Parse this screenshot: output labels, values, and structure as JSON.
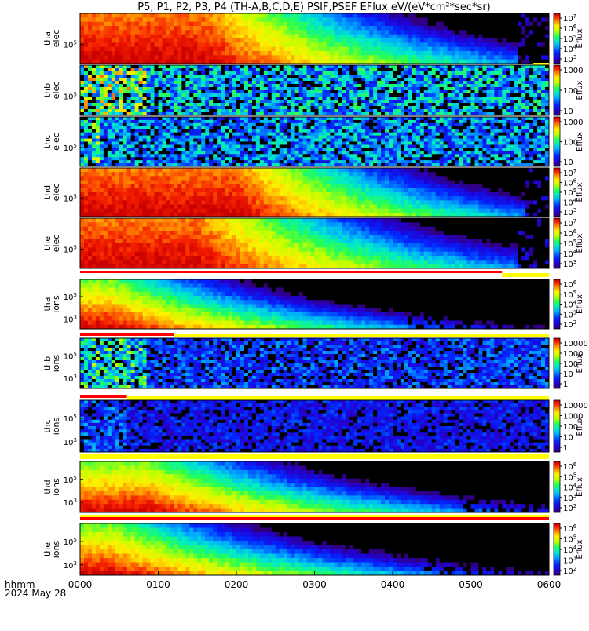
{
  "chart_data": {
    "type": "heatmap",
    "title": "P5, P1, P2, P3, P4 (TH-A,B,C,D,E) PSIF,PSEF EFlux eV/(eV*cm²*sec*sr)",
    "x_label_line1": "hhmm",
    "x_label_line2": "2024 May 28",
    "x_ticks": [
      "0000",
      "0100",
      "0200",
      "0300",
      "0400",
      "0500",
      "0600"
    ],
    "colorbar_label": "Eflux",
    "colorbar_title": "EFlux",
    "colors": {
      "background_black": "#000000",
      "flag_red": "#ff0000",
      "flag_yellow": "#ffff00"
    },
    "panels": [
      {
        "id": "tha-elec",
        "ylabel": [
          "tha",
          "elec"
        ],
        "ytick_labels": [
          {
            "base": "10",
            "exp": "5"
          }
        ],
        "colorbar_ticks": [
          {
            "base": "10",
            "exp": "3"
          },
          {
            "base": "10",
            "exp": "4"
          },
          {
            "base": "10",
            "exp": "5"
          },
          {
            "base": "10",
            "exp": "6"
          },
          {
            "base": "10",
            "exp": "7"
          }
        ],
        "cbar_range": [
          3,
          7
        ],
        "spectrum_profile": "strong",
        "intensity_decades": 7.0,
        "falloff_start_hours": 1.6,
        "falloff_end_hours": 5.6,
        "cutoff_hours": 5.6,
        "flag_bars": [
          {
            "color": "yellow",
            "start_hours": 5.8,
            "end_hours": 6.0
          }
        ]
      },
      {
        "id": "thb-elec",
        "ylabel": [
          "thb",
          "elec"
        ],
        "ytick_labels": [
          {
            "base": "10",
            "exp": "5"
          }
        ],
        "colorbar_ticks": [
          {
            "base": "",
            "exp": "",
            "text": "10"
          },
          {
            "base": "",
            "exp": "",
            "text": "100"
          },
          {
            "base": "",
            "exp": "",
            "text": "1000"
          }
        ],
        "cbar_range": [
          0,
          4
        ],
        "spectrum_profile": "noise",
        "noise_level_decades": 1.8,
        "burst_end_hours": 0.85,
        "burst_level_decades": 2.8,
        "flag_bars": []
      },
      {
        "id": "thc-elec",
        "ylabel": [
          "thc",
          "elec"
        ],
        "ytick_labels": [
          {
            "base": "10",
            "exp": "5"
          }
        ],
        "colorbar_ticks": [
          {
            "base": "",
            "exp": "",
            "text": "10"
          },
          {
            "base": "",
            "exp": "",
            "text": "100"
          },
          {
            "base": "",
            "exp": "",
            "text": "1000"
          }
        ],
        "cbar_range": [
          0,
          4
        ],
        "spectrum_profile": "noise",
        "noise_level_decades": 1.6,
        "burst_end_hours": 0.25,
        "burst_level_decades": 2.4,
        "flag_bars": []
      },
      {
        "id": "thd-elec",
        "ylabel": [
          "thd",
          "elec"
        ],
        "ytick_labels": [
          {
            "base": "10",
            "exp": "5"
          }
        ],
        "colorbar_ticks": [
          {
            "base": "10",
            "exp": "3"
          },
          {
            "base": "10",
            "exp": "4"
          },
          {
            "base": "10",
            "exp": "5"
          },
          {
            "base": "10",
            "exp": "6"
          },
          {
            "base": "10",
            "exp": "7"
          }
        ],
        "cbar_range": [
          3,
          7
        ],
        "spectrum_profile": "strong",
        "intensity_decades": 7.0,
        "falloff_start_hours": 2.0,
        "falloff_end_hours": 5.7,
        "cutoff_hours": 5.7,
        "flag_bars": []
      },
      {
        "id": "the-elec",
        "ylabel": [
          "the",
          "elec"
        ],
        "ytick_labels": [
          {
            "base": "10",
            "exp": "5"
          }
        ],
        "colorbar_ticks": [
          {
            "base": "10",
            "exp": "3"
          },
          {
            "base": "10",
            "exp": "4"
          },
          {
            "base": "10",
            "exp": "5"
          },
          {
            "base": "10",
            "exp": "6"
          },
          {
            "base": "10",
            "exp": "7"
          }
        ],
        "cbar_range": [
          3,
          7
        ],
        "spectrum_profile": "strong",
        "intensity_decades": 7.0,
        "falloff_start_hours": 1.5,
        "falloff_end_hours": 5.6,
        "cutoff_hours": 5.6,
        "flag_bars": [
          {
            "color": "red",
            "start_hours": 0.0,
            "end_hours": 5.4
          },
          {
            "color": "yellow",
            "start_hours": 5.4,
            "end_hours": 6.0
          }
        ]
      },
      {
        "id": "tha-ions",
        "ylabel": [
          "tha",
          "ions"
        ],
        "ytick_labels": [
          {
            "base": "10",
            "exp": "5"
          },
          {
            "base": "10",
            "exp": "3"
          }
        ],
        "colorbar_ticks": [
          {
            "base": "10",
            "exp": "2"
          },
          {
            "base": "10",
            "exp": "3"
          },
          {
            "base": "10",
            "exp": "4"
          },
          {
            "base": "10",
            "exp": "5"
          },
          {
            "base": "10",
            "exp": "6"
          }
        ],
        "cbar_range": [
          2,
          6.3
        ],
        "spectrum_profile": "ions",
        "intensity_decades": 6.3,
        "falloff_start_hours": 0.4,
        "falloff_end_hours": 4.2,
        "cutoff_hours": 6.0,
        "flag_bars": [
          {
            "color": "red",
            "start_hours": 0.0,
            "end_hours": 1.2
          },
          {
            "color": "yellow",
            "start_hours": 1.2,
            "end_hours": 6.0
          }
        ]
      },
      {
        "id": "thb-ions",
        "ylabel": [
          "thb",
          "ions"
        ],
        "ytick_labels": [
          {
            "base": "10",
            "exp": "5"
          },
          {
            "base": "10",
            "exp": "3"
          }
        ],
        "colorbar_ticks": [
          {
            "base": "",
            "exp": "",
            "text": "1"
          },
          {
            "base": "",
            "exp": "",
            "text": "10"
          },
          {
            "base": "",
            "exp": "",
            "text": "100"
          },
          {
            "base": "",
            "exp": "",
            "text": "1000"
          },
          {
            "base": "",
            "exp": "",
            "text": "10000"
          }
        ],
        "cbar_range": [
          0,
          4.3
        ],
        "spectrum_profile": "noise",
        "noise_level_decades": 1.2,
        "burst_end_hours": 0.85,
        "burst_level_decades": 2.3,
        "flag_bars": [
          {
            "color": "red",
            "start_hours": 0.0,
            "end_hours": 0.6
          },
          {
            "color": "yellow",
            "start_hours": 0.6,
            "end_hours": 6.0
          }
        ]
      },
      {
        "id": "thc-ions",
        "ylabel": [
          "thc",
          "ions"
        ],
        "ytick_labels": [
          {
            "base": "10",
            "exp": "5"
          },
          {
            "base": "10",
            "exp": "3"
          }
        ],
        "colorbar_ticks": [
          {
            "base": "",
            "exp": "",
            "text": "1"
          },
          {
            "base": "",
            "exp": "",
            "text": "10"
          },
          {
            "base": "",
            "exp": "",
            "text": "100"
          },
          {
            "base": "",
            "exp": "",
            "text": "1000"
          },
          {
            "base": "",
            "exp": "",
            "text": "10000"
          }
        ],
        "cbar_range": [
          0,
          4.3
        ],
        "spectrum_profile": "noise",
        "noise_level_decades": 0.9,
        "burst_end_hours": 0.6,
        "burst_level_decades": 1.3,
        "flag_bars": [
          {
            "color": "yellow",
            "start_hours": 0.0,
            "end_hours": 6.0
          }
        ]
      },
      {
        "id": "thd-ions",
        "ylabel": [
          "thd",
          "ions"
        ],
        "ytick_labels": [
          {
            "base": "10",
            "exp": "5"
          },
          {
            "base": "10",
            "exp": "3"
          }
        ],
        "colorbar_ticks": [
          {
            "base": "10",
            "exp": "2"
          },
          {
            "base": "10",
            "exp": "3"
          },
          {
            "base": "10",
            "exp": "4"
          },
          {
            "base": "10",
            "exp": "5"
          },
          {
            "base": "10",
            "exp": "6"
          }
        ],
        "cbar_range": [
          2,
          6.3
        ],
        "spectrum_profile": "ions",
        "intensity_decades": 6.3,
        "falloff_start_hours": 0.9,
        "falloff_end_hours": 4.9,
        "cutoff_hours": 6.0,
        "flag_bars": [
          {
            "color": "yellow",
            "start_hours": 0.0,
            "end_hours": 6.0
          },
          {
            "color": "red",
            "start_hours": 0.0,
            "end_hours": 6.0
          }
        ]
      },
      {
        "id": "the-ions",
        "ylabel": [
          "the",
          "ions"
        ],
        "ytick_labels": [
          {
            "base": "10",
            "exp": "5"
          },
          {
            "base": "10",
            "exp": "3"
          }
        ],
        "colorbar_ticks": [
          {
            "base": "10",
            "exp": "2"
          },
          {
            "base": "10",
            "exp": "3"
          },
          {
            "base": "10",
            "exp": "4"
          },
          {
            "base": "10",
            "exp": "5"
          },
          {
            "base": "10",
            "exp": "6"
          }
        ],
        "cbar_range": [
          2,
          6.3
        ],
        "spectrum_profile": "ions",
        "intensity_decades": 6.3,
        "falloff_start_hours": 0.4,
        "falloff_end_hours": 4.4,
        "cutoff_hours": 6.0,
        "flag_bars": []
      }
    ]
  }
}
